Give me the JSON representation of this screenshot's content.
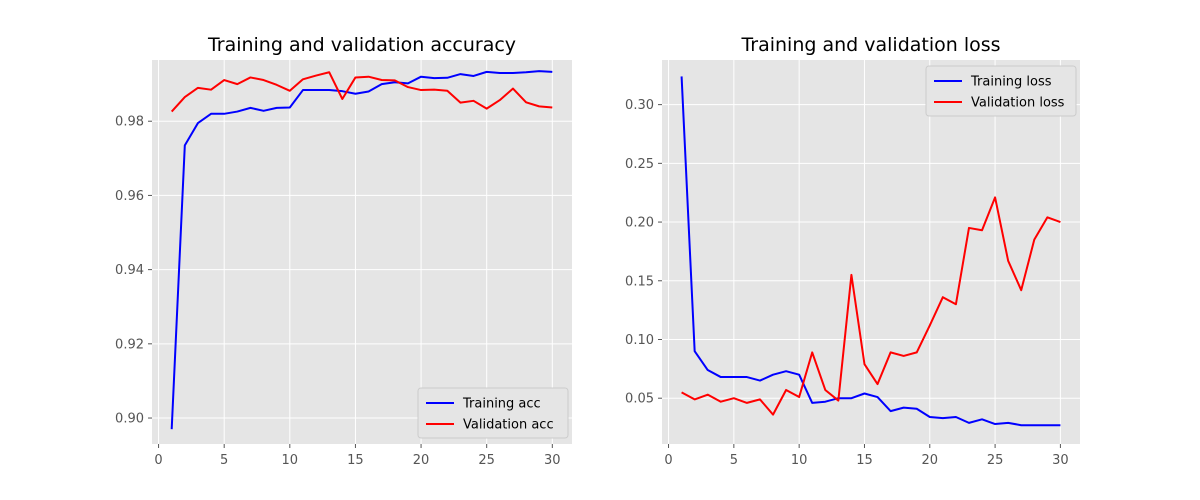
{
  "chart_data": [
    {
      "type": "line",
      "title": "Training and validation accuracy",
      "xlabel": "",
      "ylabel": "",
      "xlim": [
        -0.5,
        31.5
      ],
      "ylim": [
        0.893,
        0.9965
      ],
      "xticks": [
        0,
        5,
        10,
        15,
        20,
        25,
        30
      ],
      "yticks": [
        0.9,
        0.92,
        0.94,
        0.96,
        0.98
      ],
      "ytick_labels": [
        "0.90",
        "0.92",
        "0.94",
        "0.96",
        "0.98"
      ],
      "grid": true,
      "legend_position": "lower-right",
      "x": [
        1,
        2,
        3,
        4,
        5,
        6,
        7,
        8,
        9,
        10,
        11,
        12,
        13,
        14,
        15,
        16,
        17,
        18,
        19,
        20,
        21,
        22,
        23,
        24,
        25,
        26,
        27,
        28,
        29,
        30
      ],
      "series": [
        {
          "name": "Training acc",
          "color": "#0000ff",
          "values": [
            0.897,
            0.9735,
            0.9795,
            0.982,
            0.982,
            0.9826,
            0.9836,
            0.9828,
            0.9836,
            0.9837,
            0.9884,
            0.9884,
            0.9884,
            0.9881,
            0.9874,
            0.988,
            0.99,
            0.9905,
            0.9902,
            0.992,
            0.9916,
            0.9917,
            0.9927,
            0.9922,
            0.9933,
            0.993,
            0.993,
            0.9932,
            0.9935,
            0.9933
          ]
        },
        {
          "name": "Validation acc",
          "color": "#ff0000",
          "values": [
            0.9826,
            0.9865,
            0.989,
            0.9885,
            0.9911,
            0.99,
            0.9918,
            0.9911,
            0.9898,
            0.9882,
            0.9913,
            0.9923,
            0.9932,
            0.986,
            0.9918,
            0.992,
            0.9911,
            0.991,
            0.9892,
            0.9884,
            0.9885,
            0.9882,
            0.985,
            0.9855,
            0.9834,
            0.9857,
            0.9888,
            0.9851,
            0.984,
            0.9837
          ]
        }
      ]
    },
    {
      "type": "line",
      "title": "Training and validation loss",
      "xlabel": "",
      "ylabel": "",
      "xlim": [
        -0.5,
        31.5
      ],
      "ylim": [
        0.011,
        0.338
      ],
      "xticks": [
        0,
        5,
        10,
        15,
        20,
        25,
        30
      ],
      "yticks": [
        0.05,
        0.1,
        0.15,
        0.2,
        0.25,
        0.3
      ],
      "ytick_labels": [
        "0.05",
        "0.10",
        "0.15",
        "0.20",
        "0.25",
        "0.30"
      ],
      "grid": true,
      "legend_position": "upper-right",
      "x": [
        1,
        2,
        3,
        4,
        5,
        6,
        7,
        8,
        9,
        10,
        11,
        12,
        13,
        14,
        15,
        16,
        17,
        18,
        19,
        20,
        21,
        22,
        23,
        24,
        25,
        26,
        27,
        28,
        29,
        30
      ],
      "series": [
        {
          "name": "Training loss",
          "color": "#0000ff",
          "values": [
            0.324,
            0.09,
            0.074,
            0.068,
            0.068,
            0.068,
            0.065,
            0.07,
            0.073,
            0.07,
            0.046,
            0.047,
            0.05,
            0.05,
            0.054,
            0.051,
            0.039,
            0.042,
            0.041,
            0.034,
            0.033,
            0.034,
            0.029,
            0.032,
            0.028,
            0.029,
            0.027,
            0.027,
            0.027,
            0.027
          ]
        },
        {
          "name": "Validation loss",
          "color": "#ff0000",
          "values": [
            0.055,
            0.049,
            0.053,
            0.047,
            0.05,
            0.046,
            0.049,
            0.036,
            0.057,
            0.051,
            0.089,
            0.057,
            0.048,
            0.155,
            0.079,
            0.062,
            0.089,
            0.086,
            0.089,
            0.112,
            0.136,
            0.13,
            0.195,
            0.193,
            0.221,
            0.167,
            0.142,
            0.185,
            0.204,
            0.2
          ]
        }
      ]
    }
  ]
}
